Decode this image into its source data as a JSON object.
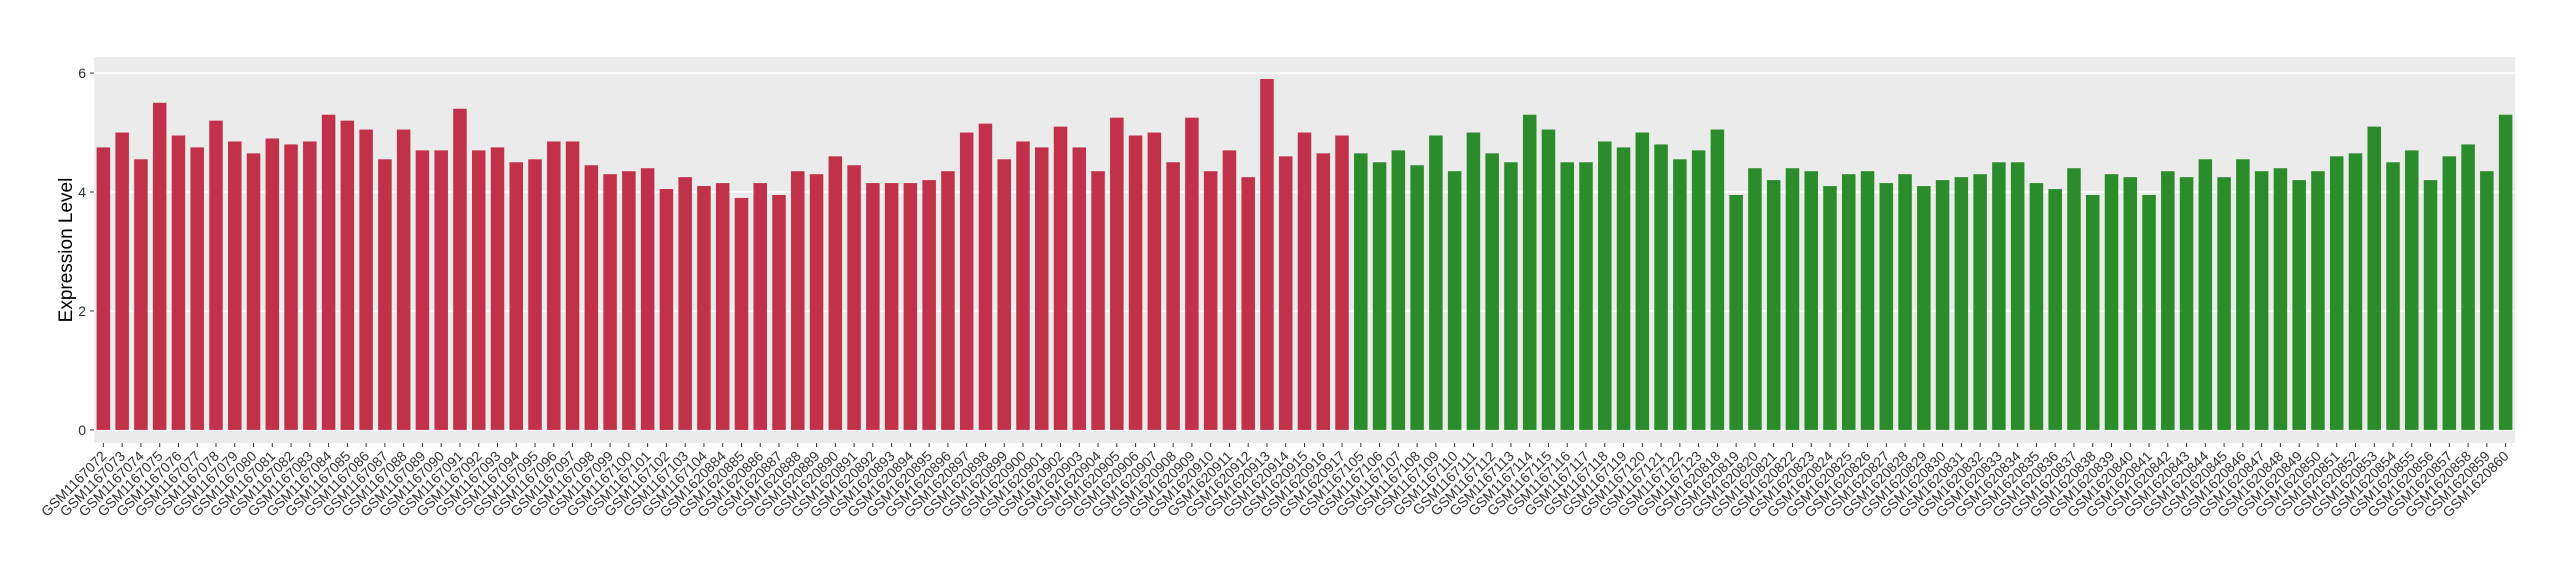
{
  "chart_data": {
    "type": "bar",
    "y_label": "Expression Level",
    "categories": [
      "GSM1167072",
      "GSM1167073",
      "GSM1167074",
      "GSM1167075",
      "GSM1167076",
      "GSM1167077",
      "GSM1167078",
      "GSM1167079",
      "GSM1167080",
      "GSM1167081",
      "GSM1167082",
      "GSM1167083",
      "GSM1167084",
      "GSM1167085",
      "GSM1167086",
      "GSM1167087",
      "GSM1167088",
      "GSM1167089",
      "GSM1167090",
      "GSM1167091",
      "GSM1167092",
      "GSM1167093",
      "GSM1167094",
      "GSM1167095",
      "GSM1167096",
      "GSM1167097",
      "GSM1167098",
      "GSM1167099",
      "GSM1167100",
      "GSM1167101",
      "GSM1167102",
      "GSM1167103",
      "GSM1167104",
      "GSM1620884",
      "GSM1620885",
      "GSM1620886",
      "GSM1620887",
      "GSM1620888",
      "GSM1620889",
      "GSM1620890",
      "GSM1620891",
      "GSM1620892",
      "GSM1620893",
      "GSM1620894",
      "GSM1620895",
      "GSM1620896",
      "GSM1620897",
      "GSM1620898",
      "GSM1620899",
      "GSM1620900",
      "GSM1620901",
      "GSM1620902",
      "GSM1620903",
      "GSM1620904",
      "GSM1620905",
      "GSM1620906",
      "GSM1620907",
      "GSM1620908",
      "GSM1620909",
      "GSM1620910",
      "GSM1620911",
      "GSM1620912",
      "GSM1620913",
      "GSM1620914",
      "GSM1620915",
      "GSM1620916",
      "GSM1620917",
      "GSM1167105",
      "GSM1167106",
      "GSM1167107",
      "GSM1167108",
      "GSM1167109",
      "GSM1167110",
      "GSM1167111",
      "GSM1167112",
      "GSM1167113",
      "GSM1167114",
      "GSM1167115",
      "GSM1167116",
      "GSM1167117",
      "GSM1167118",
      "GSM1167119",
      "GSM1167120",
      "GSM1167121",
      "GSM1167122",
      "GSM1167123",
      "GSM1620818",
      "GSM1620819",
      "GSM1620820",
      "GSM1620821",
      "GSM1620822",
      "GSM1620823",
      "GSM1620824",
      "GSM1620825",
      "GSM1620826",
      "GSM1620827",
      "GSM1620828",
      "GSM1620829",
      "GSM1620830",
      "GSM1620831",
      "GSM1620832",
      "GSM1620833",
      "GSM1620834",
      "GSM1620835",
      "GSM1620836",
      "GSM1620837",
      "GSM1620838",
      "GSM1620839",
      "GSM1620840",
      "GSM1620841",
      "GSM1620842",
      "GSM1620843",
      "GSM1620844",
      "GSM1620845",
      "GSM1620846",
      "GSM1620847",
      "GSM1620848",
      "GSM1620849",
      "GSM1620850",
      "GSM1620851",
      "GSM1620852",
      "GSM1620853",
      "GSM1620854",
      "GSM1620855",
      "GSM1620856",
      "GSM1620857",
      "GSM1620858",
      "GSM1620859",
      "GSM1620860"
    ],
    "series": [
      {
        "color": "#c2314a",
        "values": [
          4.75,
          5.0,
          4.55,
          5.5,
          4.95,
          4.75,
          5.2,
          4.85,
          4.65,
          4.9,
          4.8,
          4.85,
          5.3,
          5.2,
          5.05,
          4.55,
          5.05,
          4.7,
          4.7,
          5.4,
          4.7,
          4.75,
          4.5,
          4.55,
          4.85,
          4.85,
          4.45,
          4.3,
          4.35,
          4.4,
          4.05,
          4.25,
          4.1,
          4.15,
          3.9,
          4.15,
          3.95,
          4.35,
          4.3,
          4.6,
          4.45,
          4.15,
          4.15,
          4.15,
          4.2,
          4.35,
          5.0,
          5.15,
          4.55,
          4.85,
          4.75,
          5.1,
          4.75,
          4.35,
          5.25,
          4.95,
          5.0,
          4.5,
          5.25,
          4.35,
          4.7,
          4.25,
          5.9,
          4.6,
          5.0,
          4.65,
          4.95,
          null,
          null,
          null,
          null,
          null,
          null,
          null,
          null,
          null,
          null,
          null,
          null,
          null,
          null,
          null,
          null,
          null,
          null,
          null,
          null,
          null,
          null,
          null,
          null,
          null,
          null,
          null,
          null,
          null,
          null,
          null,
          null,
          null,
          null,
          null,
          null,
          null,
          null,
          null,
          null,
          null,
          null,
          null,
          null,
          null,
          null,
          null,
          null,
          null,
          null,
          null,
          null,
          null,
          null,
          null,
          null,
          null,
          null,
          null,
          null,
          null,
          null
        ]
      },
      {
        "color": "#2b8c2b",
        "values": [
          null,
          null,
          null,
          null,
          null,
          null,
          null,
          null,
          null,
          null,
          null,
          null,
          null,
          null,
          null,
          null,
          null,
          null,
          null,
          null,
          null,
          null,
          null,
          null,
          null,
          null,
          null,
          null,
          null,
          null,
          null,
          null,
          null,
          null,
          null,
          null,
          null,
          null,
          null,
          null,
          null,
          null,
          null,
          null,
          null,
          null,
          null,
          null,
          null,
          null,
          null,
          null,
          null,
          null,
          null,
          null,
          null,
          null,
          null,
          null,
          null,
          null,
          null,
          null,
          null,
          null,
          null,
          4.65,
          4.5,
          4.7,
          4.45,
          4.95,
          4.35,
          5.0,
          4.65,
          4.5,
          5.3,
          5.05,
          4.5,
          4.5,
          4.85,
          4.75,
          5.0,
          4.8,
          4.55,
          4.7,
          5.05,
          3.95,
          4.4,
          4.2,
          4.4,
          4.35,
          4.1,
          4.3,
          4.35,
          4.15,
          4.3,
          4.1,
          4.2,
          4.25,
          4.3,
          4.5,
          4.5,
          4.15,
          4.05,
          4.4,
          3.95,
          4.3,
          4.25,
          3.95,
          4.35,
          4.25,
          4.55,
          4.25,
          4.55,
          4.35,
          4.4,
          4.2,
          4.35,
          4.6,
          4.65,
          5.1,
          4.5,
          4.7,
          4.2,
          4.6,
          4.8,
          4.35,
          5.3
        ]
      }
    ],
    "ylim": [
      -0.22,
      6.27
    ],
    "yticks": [
      0,
      2,
      4,
      6
    ],
    "grid": true
  }
}
